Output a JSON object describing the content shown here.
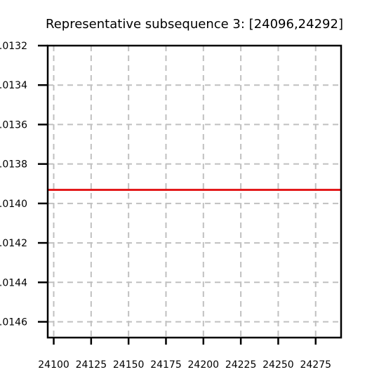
{
  "chart_data": {
    "type": "line",
    "title": "Representative subsequence 3: [24096,24292]",
    "xlabel": "",
    "ylabel": "",
    "xlim": [
      24096,
      24292
    ],
    "ylim": [
      0.0132,
      0.01468
    ],
    "y_inverted": true,
    "grid": true,
    "x_ticks": [
      24100,
      24125,
      24150,
      24175,
      24200,
      24225,
      24250,
      24275
    ],
    "x_tick_labels": [
      "24100",
      "24125",
      "24150",
      "24175",
      "24200",
      "24225",
      "24250",
      "24275"
    ],
    "y_ticks": [
      0.0132,
      0.0134,
      0.0136,
      0.0138,
      0.014,
      0.0142,
      0.0144,
      0.0146
    ],
    "y_tick_labels": [
      ".0132",
      ".0134",
      ".0136",
      ".0138",
      ".0140",
      ".0142",
      ".0144",
      ".0146"
    ],
    "series": [
      {
        "color": "#e31a1c",
        "x": [
          24096,
          24292
        ],
        "y": [
          0.013931,
          0.013931
        ]
      }
    ]
  }
}
